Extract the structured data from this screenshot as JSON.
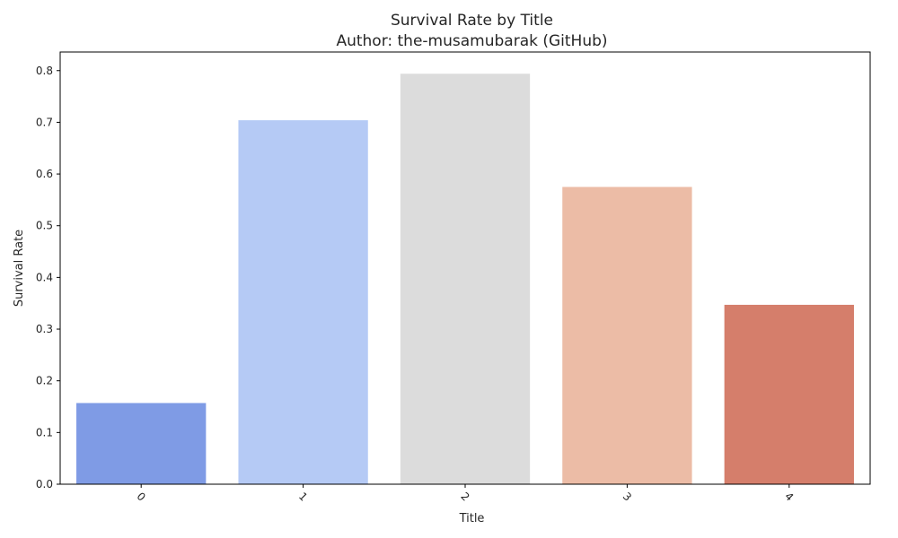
{
  "chart_data": {
    "type": "bar",
    "title": "Survival Rate by Title",
    "subtitle": "Author: the-musamubarak (GitHub)",
    "xlabel": "Title",
    "ylabel": "Survival Rate",
    "categories": [
      "0",
      "1",
      "2",
      "3",
      "4"
    ],
    "values": [
      0.157,
      0.704,
      0.794,
      0.575,
      0.347
    ],
    "colors": [
      "#7f9be5",
      "#b5caf5",
      "#dcdcdc",
      "#ecbca6",
      "#d57e6b"
    ],
    "ylim": [
      0,
      0.836
    ],
    "yticks": [
      "0.0",
      "0.1",
      "0.2",
      "0.3",
      "0.4",
      "0.5",
      "0.6",
      "0.7",
      "0.8"
    ],
    "grid": false,
    "legend": "none"
  }
}
